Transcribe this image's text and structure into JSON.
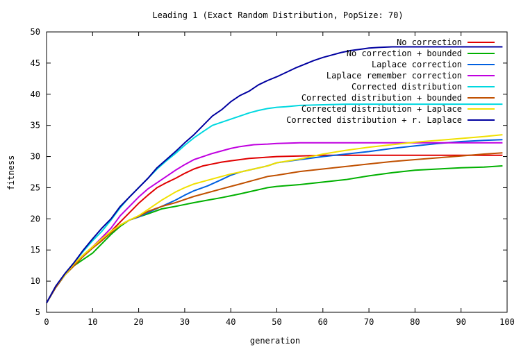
{
  "chart_data": {
    "type": "line",
    "title": "Leading 1 (Exact Random Distribution, PopSize: 70)",
    "xlabel": "generation",
    "ylabel": "fitness",
    "xlim": [
      0,
      100
    ],
    "ylim": [
      5,
      50
    ],
    "xticks": [
      0,
      10,
      20,
      30,
      40,
      50,
      60,
      70,
      80,
      90,
      100
    ],
    "yticks": [
      5,
      10,
      15,
      20,
      25,
      30,
      35,
      40,
      45,
      50
    ],
    "grid": false,
    "legend_position": "top-right",
    "series": [
      {
        "name": "No correction",
        "color": "#e00000",
        "x": [
          0,
          2,
          4,
          6,
          8,
          10,
          12,
          14,
          16,
          18,
          20,
          22,
          24,
          26,
          28,
          30,
          32,
          34,
          36,
          38,
          40,
          42,
          44,
          46,
          48,
          50,
          55,
          60,
          65,
          70,
          75,
          80,
          85,
          90,
          95,
          99
        ],
        "y": [
          6.5,
          9.2,
          11.2,
          12.8,
          14.2,
          15.5,
          16.8,
          18.0,
          19.5,
          21.0,
          22.5,
          23.8,
          25.0,
          25.8,
          26.5,
          27.3,
          28.0,
          28.5,
          28.8,
          29.1,
          29.3,
          29.5,
          29.7,
          29.8,
          29.9,
          30.0,
          30.1,
          30.2,
          30.2,
          30.2,
          30.2,
          30.2,
          30.2,
          30.2,
          30.2,
          30.2
        ]
      },
      {
        "name": "No correction + bounded",
        "color": "#00b000",
        "x": [
          0,
          2,
          4,
          6,
          8,
          10,
          12,
          14,
          16,
          18,
          20,
          22,
          25,
          28,
          30,
          32,
          35,
          38,
          40,
          42,
          45,
          48,
          50,
          55,
          60,
          65,
          70,
          75,
          80,
          85,
          90,
          95,
          99
        ],
        "y": [
          6.5,
          9.0,
          11.0,
          12.5,
          13.5,
          14.5,
          16.0,
          17.5,
          18.8,
          19.8,
          20.3,
          20.8,
          21.6,
          22.0,
          22.3,
          22.6,
          23.0,
          23.4,
          23.7,
          24.0,
          24.5,
          25.0,
          25.2,
          25.5,
          25.9,
          26.3,
          26.9,
          27.4,
          27.8,
          28.0,
          28.2,
          28.3,
          28.5
        ]
      },
      {
        "name": "Laplace correction",
        "color": "#0060e0",
        "x": [
          0,
          2,
          4,
          6,
          8,
          10,
          12,
          14,
          16,
          18,
          20,
          22,
          25,
          28,
          30,
          32,
          35,
          38,
          40,
          42,
          45,
          48,
          50,
          55,
          60,
          65,
          70,
          75,
          80,
          85,
          90,
          95,
          99
        ],
        "y": [
          6.5,
          9.0,
          11.0,
          12.8,
          14.0,
          15.5,
          16.8,
          17.8,
          19.0,
          19.8,
          20.3,
          21.0,
          22.0,
          23.0,
          23.8,
          24.5,
          25.3,
          26.3,
          27.0,
          27.5,
          28.0,
          28.5,
          29.0,
          29.5,
          30.0,
          30.4,
          30.8,
          31.3,
          31.7,
          32.1,
          32.4,
          32.6,
          32.7
        ]
      },
      {
        "name": "Laplace remember correction",
        "color": "#c000e0",
        "x": [
          0,
          2,
          4,
          6,
          8,
          10,
          12,
          14,
          16,
          18,
          20,
          22,
          24,
          26,
          28,
          30,
          32,
          34,
          36,
          38,
          40,
          42,
          45,
          48,
          50,
          55,
          60,
          65,
          70,
          75,
          80,
          85,
          90,
          95,
          99
        ],
        "y": [
          6.5,
          9.2,
          11.2,
          12.8,
          14.0,
          15.5,
          17.0,
          18.5,
          20.5,
          22.0,
          23.5,
          24.8,
          25.8,
          26.8,
          27.8,
          28.7,
          29.5,
          30.0,
          30.5,
          30.9,
          31.3,
          31.6,
          31.9,
          32.0,
          32.1,
          32.2,
          32.2,
          32.2,
          32.2,
          32.2,
          32.2,
          32.2,
          32.2,
          32.2,
          32.2
        ]
      },
      {
        "name": "Corrected distribution",
        "color": "#00d8e0",
        "x": [
          0,
          2,
          4,
          6,
          8,
          10,
          12,
          14,
          16,
          18,
          20,
          22,
          24,
          26,
          28,
          30,
          32,
          34,
          36,
          38,
          40,
          42,
          44,
          46,
          48,
          50,
          52,
          55,
          60,
          65,
          70,
          75,
          80,
          85,
          90,
          95,
          99
        ],
        "y": [
          6.5,
          9.2,
          11.2,
          13.0,
          14.8,
          16.5,
          18.0,
          19.8,
          21.8,
          23.5,
          25.0,
          26.5,
          28.0,
          29.3,
          30.5,
          31.8,
          33.0,
          34.0,
          35.0,
          35.5,
          36.0,
          36.5,
          37.0,
          37.4,
          37.7,
          37.9,
          38.0,
          38.2,
          38.3,
          38.4,
          38.4,
          38.4,
          38.4,
          38.4,
          38.4,
          38.4,
          38.4
        ]
      },
      {
        "name": "Corrected distribution + bounded",
        "color": "#c05000",
        "x": [
          0,
          2,
          4,
          6,
          8,
          10,
          12,
          14,
          16,
          18,
          20,
          22,
          25,
          28,
          30,
          32,
          35,
          38,
          40,
          42,
          45,
          48,
          50,
          55,
          60,
          65,
          70,
          75,
          80,
          85,
          90,
          95,
          99
        ],
        "y": [
          6.5,
          9.0,
          11.0,
          12.5,
          14.0,
          15.3,
          16.5,
          17.8,
          19.0,
          19.8,
          20.4,
          21.2,
          22.0,
          22.6,
          23.1,
          23.6,
          24.2,
          24.8,
          25.2,
          25.6,
          26.2,
          26.8,
          27.0,
          27.6,
          28.0,
          28.4,
          28.8,
          29.2,
          29.5,
          29.8,
          30.1,
          30.4,
          30.6
        ]
      },
      {
        "name": "Corrected distribution + Laplace",
        "color": "#f0e000",
        "x": [
          0,
          2,
          4,
          6,
          8,
          10,
          12,
          14,
          16,
          18,
          20,
          22,
          25,
          28,
          30,
          32,
          35,
          38,
          40,
          42,
          45,
          48,
          50,
          55,
          60,
          65,
          70,
          75,
          80,
          85,
          90,
          95,
          99
        ],
        "y": [
          6.5,
          9.2,
          11.0,
          12.8,
          14.2,
          15.5,
          16.8,
          18.0,
          19.0,
          19.8,
          20.5,
          21.5,
          23.0,
          24.3,
          25.0,
          25.6,
          26.2,
          26.8,
          27.2,
          27.5,
          28.0,
          28.5,
          29.0,
          29.6,
          30.4,
          31.0,
          31.5,
          31.9,
          32.3,
          32.6,
          32.9,
          33.2,
          33.5
        ]
      },
      {
        "name": "Corrected distribution + r. Laplace",
        "color": "#0000a0",
        "x": [
          0,
          2,
          4,
          6,
          8,
          10,
          12,
          14,
          16,
          18,
          20,
          22,
          24,
          26,
          28,
          30,
          32,
          34,
          36,
          38,
          40,
          42,
          44,
          46,
          48,
          50,
          52,
          54,
          56,
          58,
          60,
          62,
          64,
          66,
          68,
          70,
          72,
          75,
          80,
          85,
          90,
          95,
          99
        ],
        "y": [
          6.5,
          9.2,
          11.2,
          13.0,
          15.0,
          16.8,
          18.5,
          20.0,
          22.0,
          23.5,
          25.0,
          26.5,
          28.2,
          29.5,
          30.8,
          32.2,
          33.5,
          35.0,
          36.5,
          37.5,
          38.8,
          39.8,
          40.5,
          41.5,
          42.2,
          42.8,
          43.5,
          44.2,
          44.8,
          45.4,
          45.9,
          46.3,
          46.7,
          47.0,
          47.2,
          47.4,
          47.5,
          47.6,
          47.6,
          47.6,
          47.6,
          47.6,
          47.6
        ]
      }
    ]
  }
}
